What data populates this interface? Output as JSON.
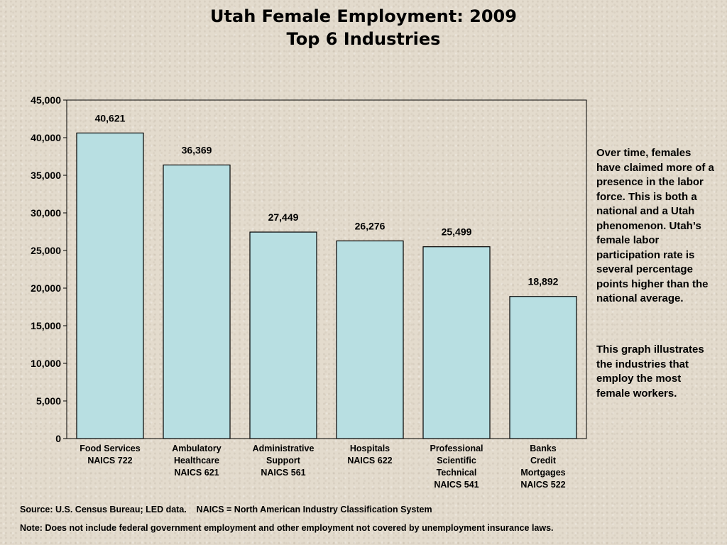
{
  "slide": {
    "title_line1": "Utah Female Employment: 2009",
    "title_line2": "Top 6 Industries",
    "side_text_1": "Over time, females have claimed more of a presence in the labor force. This is both a national and a Utah phenomenon. Utah’s female labor participation rate is several percentage points higher than the national average.",
    "side_text_2": "This graph illustrates the industries that employ the most female workers.",
    "source": "Source: U.S. Census Bureau; LED data.    NAICS = North American Industry Classification System",
    "note": "Note: Does not include federal government employment and other employment not covered by unemployment insurance laws."
  },
  "chart_data": {
    "type": "bar",
    "title": "Utah Female Employment: 2009 Top 6 Industries",
    "categories": [
      [
        "Food Services",
        "NAICS 722"
      ],
      [
        "Ambulatory",
        "Healthcare",
        "NAICS 621"
      ],
      [
        "Administrative",
        "Support",
        "NAICS 561"
      ],
      [
        "Hospitals",
        "NAICS 622"
      ],
      [
        "Professional",
        "Scientific",
        "Technical",
        "NAICS 541"
      ],
      [
        "Banks",
        "Credit",
        "Mortgages",
        "NAICS 522"
      ]
    ],
    "values": [
      40621,
      36369,
      27449,
      26276,
      25499,
      18892
    ],
    "value_labels": [
      "40,621",
      "36,369",
      "27,449",
      "26,276",
      "25,499",
      "18,892"
    ],
    "yticks": [
      "0",
      "5,000",
      "10,000",
      "15,000",
      "20,000",
      "25,000",
      "30,000",
      "35,000",
      "40,000",
      "45,000"
    ],
    "ylim": [
      0,
      45000
    ],
    "ystep": 5000,
    "grid": false,
    "legend": "none",
    "colors": {
      "bar_fill": "#b8dfe2",
      "bar_stroke": "#000000"
    }
  }
}
